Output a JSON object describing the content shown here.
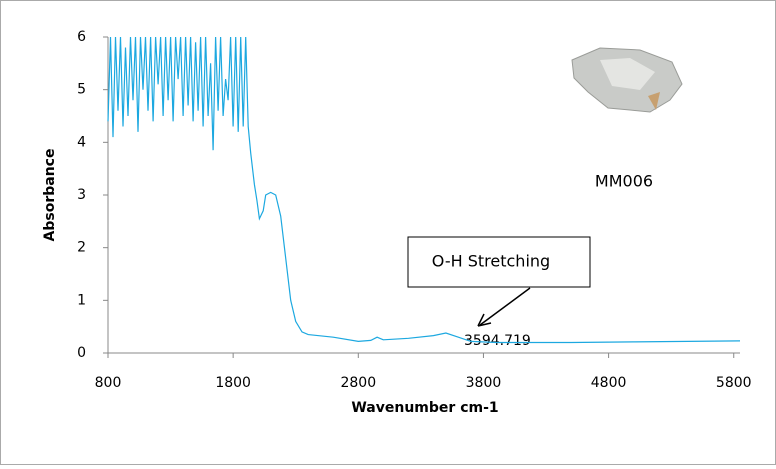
{
  "chart_data": {
    "type": "line",
    "x_label": "Wavenumber cm-1",
    "y_label": "Absorbance",
    "xlim": [
      800,
      5850
    ],
    "ylim": [
      0,
      6
    ],
    "xticks": [
      800,
      1800,
      2800,
      3800,
      4800,
      5800
    ],
    "yticks": [
      0,
      1,
      2,
      3,
      4,
      5,
      6
    ],
    "grid": false,
    "annotations": [
      {
        "text": "MM006"
      },
      {
        "text": "O-H Stretching"
      },
      {
        "text": "3594.719"
      }
    ],
    "series": [
      {
        "color": "#1ca8e0",
        "x": [
          800,
          820,
          840,
          860,
          880,
          900,
          920,
          940,
          960,
          980,
          1000,
          1020,
          1040,
          1060,
          1080,
          1100,
          1120,
          1140,
          1160,
          1180,
          1200,
          1220,
          1240,
          1260,
          1280,
          1300,
          1320,
          1340,
          1360,
          1380,
          1400,
          1420,
          1440,
          1460,
          1480,
          1500,
          1520,
          1540,
          1560,
          1580,
          1600,
          1620,
          1640,
          1660,
          1680,
          1700,
          1720,
          1740,
          1760,
          1780,
          1800,
          1820,
          1840,
          1860,
          1880,
          1900,
          1920,
          1940,
          1970,
          1990,
          2010,
          2040,
          2060,
          2100,
          2140,
          2180,
          2220,
          2260,
          2300,
          2350,
          2400,
          2600,
          2800,
          2900,
          2950,
          3000,
          3200,
          3400,
          3500,
          3600,
          3700,
          3900,
          4500,
          5000,
          5850
        ],
        "values": [
          4.4,
          6,
          4.1,
          6,
          4.6,
          6,
          4.3,
          5.8,
          4.5,
          6,
          4.8,
          6,
          4.2,
          6,
          5.0,
          6,
          4.6,
          6,
          4.4,
          6,
          5.1,
          6,
          4.5,
          6,
          4.8,
          6,
          4.4,
          6,
          5.2,
          6,
          4.5,
          6,
          4.7,
          6,
          4.4,
          5.9,
          4.6,
          6,
          4.3,
          6,
          4.5,
          5.5,
          3.85,
          6,
          4.6,
          6,
          4.5,
          5.2,
          4.8,
          6,
          4.3,
          6,
          4.2,
          6,
          4.3,
          6,
          4.3,
          3.8,
          3.2,
          2.9,
          2.55,
          2.7,
          3.0,
          3.05,
          3.0,
          2.6,
          1.8,
          1.0,
          0.6,
          0.4,
          0.35,
          0.3,
          0.22,
          0.24,
          0.3,
          0.25,
          0.28,
          0.33,
          0.38,
          0.3,
          0.22,
          0.2,
          0.2,
          0.21,
          0.23
        ]
      }
    ]
  }
}
